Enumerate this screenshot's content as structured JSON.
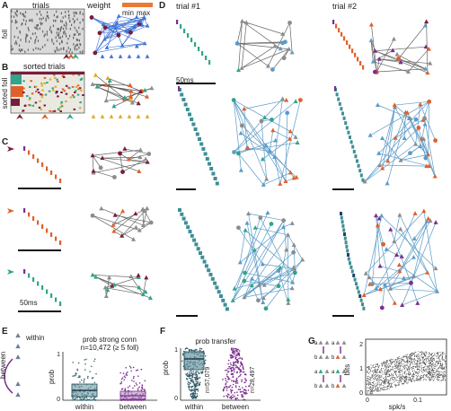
{
  "colors": {
    "green": "#2fa58a",
    "teal": "#3e8f96",
    "orange": "#e0602b",
    "purple": "#7b2d8f",
    "maroon": "#7a1d3a",
    "gray": "#8c8c8c",
    "blue": "#5b9bc8",
    "yellow": "#e3a91f",
    "navy": "#24426f",
    "raster_bg": "#e9e9e2"
  },
  "panelA": {
    "letter": "A",
    "trials_title": "trials",
    "foll_label": "foll",
    "weight_label": "weight",
    "min_label": "min",
    "max_label": "max"
  },
  "panelB": {
    "letter": "B",
    "title": "sorted trials",
    "ylabel": "sorted foll"
  },
  "panelC": {
    "letter": "C",
    "scale_label": "50ms"
  },
  "panelD": {
    "letter": "D",
    "trial1": "trial #1",
    "trial2": "trial #2",
    "scale_label": "50ms"
  },
  "panelE": {
    "letter": "E",
    "within_label": "within",
    "between_label": "between",
    "title": "prob strong conn",
    "subtitle": "n=10,472 (≥ 5 foll)",
    "ylabel": "prob",
    "xlabel_within": "within",
    "xlabel_between": "between",
    "yticks": [
      "0",
      "1"
    ]
  },
  "panelF": {
    "letter": "F",
    "title": "prob transfer",
    "ylabel": "prob",
    "n_within": "n=57,079",
    "n_between": "n=28,497",
    "xlabel_within": "within",
    "xlabel_between": "between",
    "yticks": [
      "0",
      "1"
    ]
  },
  "panelG": {
    "letter": "G",
    "ylabel": "bits",
    "xlabel": "spk/s",
    "yticks": [
      "0",
      "1",
      "2"
    ],
    "xticks": [
      "0",
      "0.1"
    ],
    "node_a": "a",
    "node_b": "b"
  }
}
